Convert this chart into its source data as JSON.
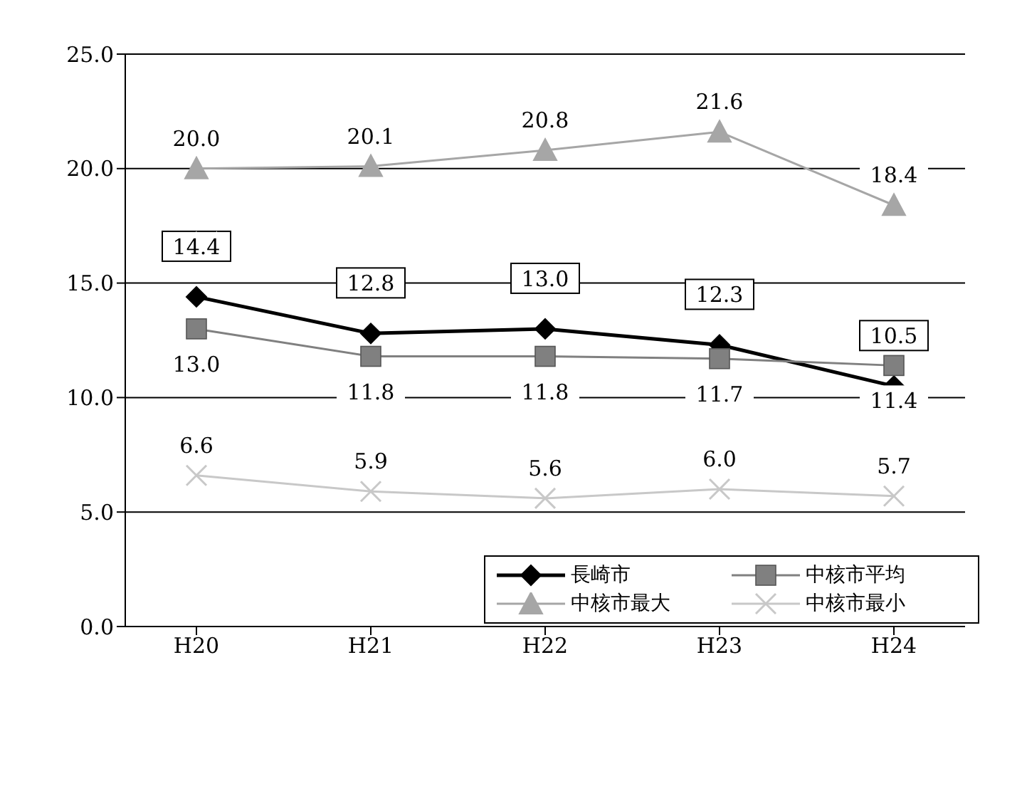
{
  "chart_data": {
    "type": "line",
    "categories": [
      "H20",
      "H21",
      "H22",
      "H23",
      "H24"
    ],
    "series": [
      {
        "name": "長崎市",
        "color": "#000000",
        "marker": "diamond",
        "values": [
          14.4,
          12.8,
          13.0,
          12.3,
          10.5
        ],
        "value_labels": [
          "14.4",
          "12.8",
          "13.0",
          "12.3",
          "10.5"
        ]
      },
      {
        "name": "中核市平均",
        "color": "#808080",
        "marker": "square",
        "values": [
          13.0,
          11.8,
          11.8,
          11.7,
          11.4
        ],
        "value_labels": [
          "13.0",
          "11.8",
          "11.8",
          "11.7",
          "11.4"
        ]
      },
      {
        "name": "中核市最大",
        "color": "#a6a6a6",
        "marker": "triangle",
        "values": [
          20.0,
          20.1,
          20.8,
          21.6,
          18.4
        ],
        "value_labels": [
          "20.0",
          "20.1",
          "20.8",
          "21.6",
          "18.4"
        ]
      },
      {
        "name": "中核市最小",
        "color": "#c8c8c8",
        "marker": "cross",
        "values": [
          6.6,
          5.9,
          5.6,
          6.0,
          5.7
        ],
        "value_labels": [
          "6.6",
          "5.9",
          "5.6",
          "6.0",
          "5.7"
        ]
      }
    ],
    "ylim": [
      0,
      25
    ],
    "yticks": [
      {
        "value": 0,
        "label": "0.0"
      },
      {
        "value": 5,
        "label": "5.0"
      },
      {
        "value": 10,
        "label": "10.0"
      },
      {
        "value": 15,
        "label": "15.0"
      },
      {
        "value": 20,
        "label": "20.0"
      },
      {
        "value": 25,
        "label": "25.0"
      }
    ],
    "grid": "y",
    "legend": "bottom right"
  }
}
